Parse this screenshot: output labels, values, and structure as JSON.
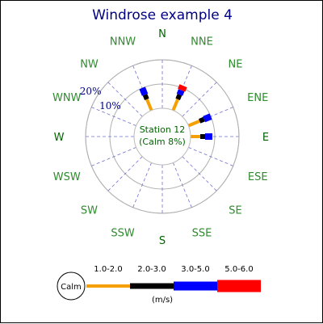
{
  "chart_data": {
    "type": "windrose",
    "title": "Windrose example 4",
    "center_text": [
      "Station 12",
      "(Calm 8%)"
    ],
    "directions": [
      "N",
      "NNE",
      "NE",
      "ENE",
      "E",
      "ESE",
      "SE",
      "SSE",
      "S",
      "SSW",
      "SW",
      "WSW",
      "W",
      "WNW",
      "NW",
      "NNW"
    ],
    "ring_labels": [
      "10%",
      "20%"
    ],
    "rings": [
      10,
      20
    ],
    "series": [
      {
        "name": "1.0-2.0",
        "color": "#f5a000"
      },
      {
        "name": "2.0-3.0",
        "color": "#000000"
      },
      {
        "name": "3.0-5.0",
        "color": "#0000ff"
      },
      {
        "name": "5.0-6.0",
        "color": "#ff0000"
      }
    ],
    "data": [
      {
        "dir": "NNE",
        "values": [
          5,
          2,
          2,
          2
        ]
      },
      {
        "dir": "ENE",
        "values": [
          5,
          2,
          3,
          0
        ]
      },
      {
        "dir": "E",
        "values": [
          4,
          2,
          3,
          0
        ]
      },
      {
        "dir": "NNW",
        "values": [
          5,
          2,
          3,
          0
        ]
      }
    ],
    "legend": {
      "calm_label": "Calm",
      "unit": "(m/s)"
    }
  }
}
